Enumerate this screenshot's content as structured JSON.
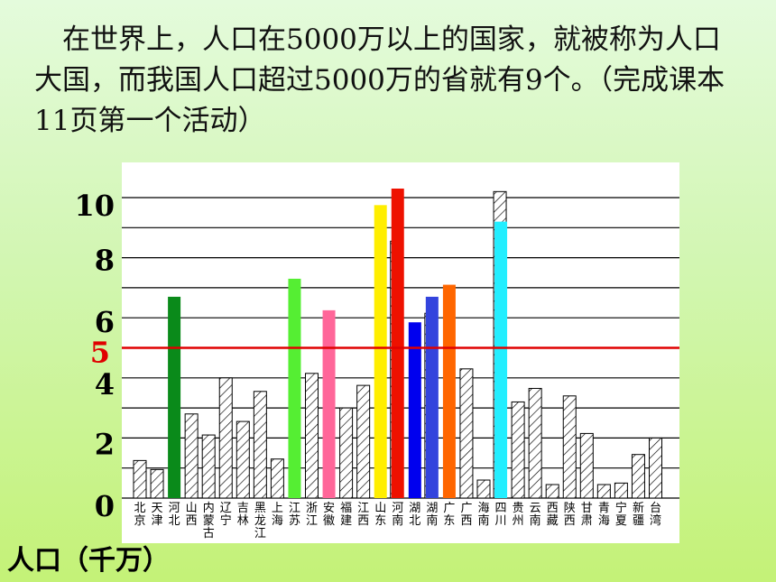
{
  "intro_text": "在世界上，人口在5000万以上的国家，就被称为人口大国，而我国人口超过5000万的省就有9个。（完成课本11页第一个活动）",
  "y_axis_label": "人口（千万）",
  "colors": {
    "grid": "#000000",
    "reference_line": "#e00000",
    "hatch": "#000000",
    "plot_bg": "#ffffff"
  },
  "chart_data": {
    "type": "bar",
    "ylabel": "人口（千万）",
    "ylim": [
      0,
      11
    ],
    "yticks": [
      0,
      2,
      4,
      6,
      8,
      10
    ],
    "reference_line": {
      "value": 5,
      "label": "5",
      "color": "#e00000"
    },
    "grid": true,
    "categories": [
      "北京",
      "天津",
      "河北",
      "山西",
      "内蒙古",
      "辽宁",
      "吉林",
      "黑龙江",
      "上海",
      "江苏",
      "浙江",
      "安徽",
      "福建",
      "江西",
      "山东",
      "河南",
      "湖北",
      "湖南",
      "广东",
      "广西",
      "海南",
      "四川",
      "贵州",
      "云南",
      "西藏",
      "陕西",
      "甘肃",
      "青海",
      "宁夏",
      "新疆",
      "台湾"
    ],
    "values": [
      1.25,
      0.95,
      6.7,
      2.8,
      2.1,
      4.0,
      2.55,
      3.55,
      1.3,
      7.3,
      4.15,
      6.25,
      3.0,
      3.75,
      9.75,
      10.3,
      5.85,
      6.7,
      7.1,
      4.3,
      0.6,
      9.2,
      3.2,
      3.65,
      0.45,
      3.4,
      2.15,
      0.45,
      0.5,
      1.45,
      2.0
    ],
    "bar_colors": [
      null,
      null,
      "#0a8a1a",
      null,
      null,
      null,
      null,
      null,
      null,
      "#55ee33",
      null,
      "#ff6699",
      null,
      null,
      "#ffee00",
      "#ee1100",
      "#0000ee",
      "#3344dd",
      "#ff6600",
      null,
      null,
      "#22eeff",
      null,
      null,
      null,
      null,
      null,
      null,
      null,
      null,
      null
    ],
    "behind_values": [
      null,
      null,
      null,
      null,
      null,
      null,
      null,
      null,
      null,
      null,
      null,
      null,
      null,
      null,
      null,
      8.55,
      null,
      6.15,
      null,
      null,
      null,
      10.2,
      null,
      null,
      null,
      null,
      null,
      null,
      null,
      null,
      null
    ]
  }
}
